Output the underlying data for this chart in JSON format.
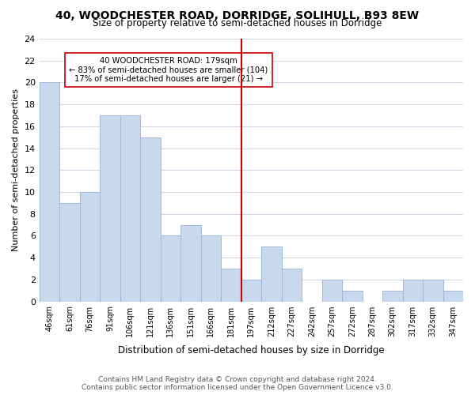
{
  "title": "40, WOODCHESTER ROAD, DORRIDGE, SOLIHULL, B93 8EW",
  "subtitle": "Size of property relative to semi-detached houses in Dorridge",
  "xlabel": "Distribution of semi-detached houses by size in Dorridge",
  "ylabel": "Number of semi-detached properties",
  "bar_labels": [
    "46sqm",
    "61sqm",
    "76sqm",
    "91sqm",
    "106sqm",
    "121sqm",
    "136sqm",
    "151sqm",
    "166sqm",
    "181sqm",
    "197sqm",
    "212sqm",
    "227sqm",
    "242sqm",
    "257sqm",
    "272sqm",
    "287sqm",
    "302sqm",
    "317sqm",
    "332sqm",
    "347sqm"
  ],
  "bar_values": [
    20,
    9,
    10,
    17,
    17,
    15,
    6,
    7,
    6,
    3,
    2,
    5,
    3,
    0,
    2,
    1,
    0,
    1,
    2,
    2,
    1
  ],
  "bar_color": "#c9d9ed",
  "bar_edge_color": "#a0b8d8",
  "vline_x": 9.5,
  "vline_color": "#cc0000",
  "annotation_title": "40 WOODCHESTER ROAD: 179sqm",
  "annotation_line1": "← 83% of semi-detached houses are smaller (104)",
  "annotation_line2": "17% of semi-detached houses are larger (21) →",
  "ylim": [
    0,
    24
  ],
  "yticks": [
    0,
    2,
    4,
    6,
    8,
    10,
    12,
    14,
    16,
    18,
    20,
    22,
    24
  ],
  "footer_line1": "Contains HM Land Registry data © Crown copyright and database right 2024.",
  "footer_line2": "Contains public sector information licensed under the Open Government Licence v3.0.",
  "background_color": "#ffffff",
  "grid_color": "#d0d8e8"
}
